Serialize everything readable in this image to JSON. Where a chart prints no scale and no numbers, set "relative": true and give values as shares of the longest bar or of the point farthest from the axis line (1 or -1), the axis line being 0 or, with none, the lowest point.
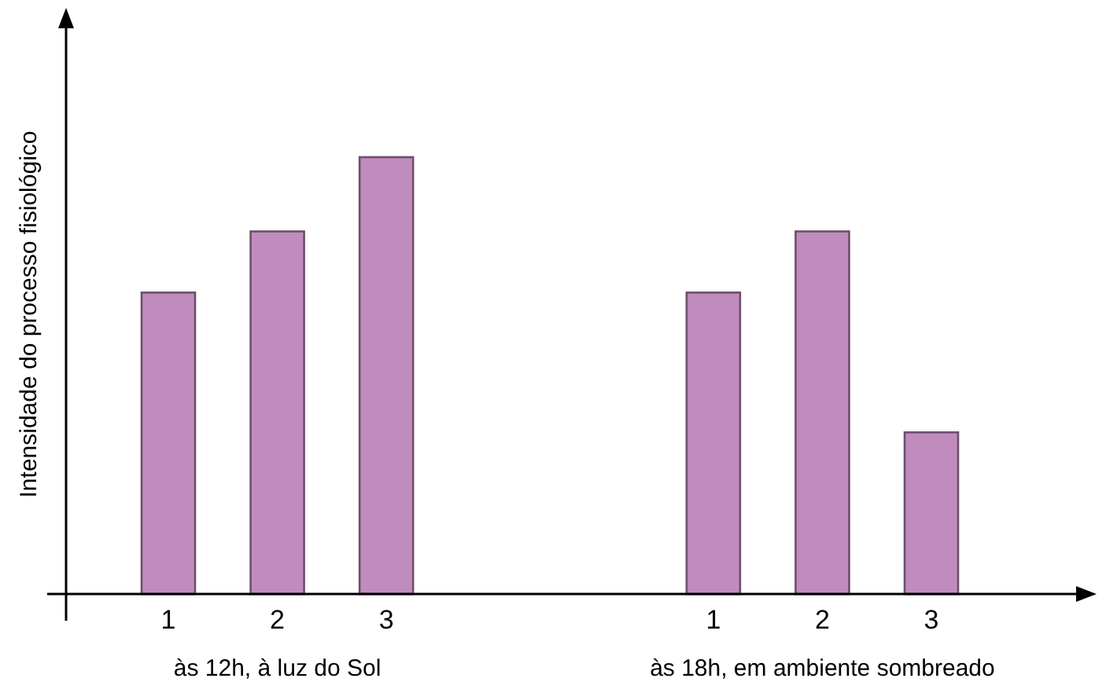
{
  "chart_data": {
    "type": "bar",
    "relative": true,
    "ylabel": "Intensidade do processo fisiológico",
    "categories": [
      "1",
      "2",
      "3",
      null,
      null,
      "1",
      "2",
      "3"
    ],
    "values": [
      0.69,
      0.83,
      1,
      null,
      null,
      0.69,
      0.83,
      0.37
    ],
    "color": "#c08cbe",
    "annotations": [
      "às 12h, à luz do Sol",
      "às 18h, em ambiente sombreado"
    ]
  }
}
